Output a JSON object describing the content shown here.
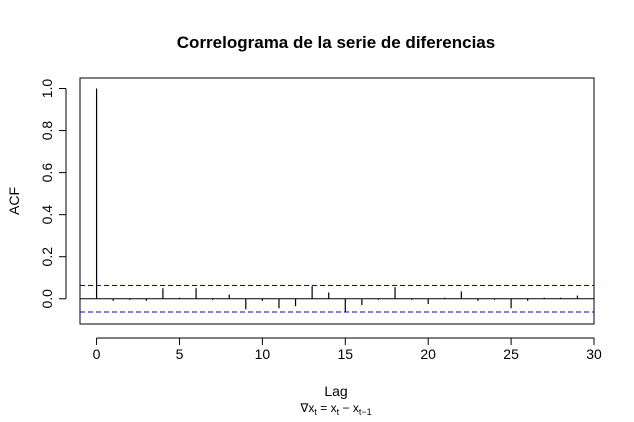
{
  "chart_data": {
    "type": "bar",
    "title": "Correlograma de la serie de diferencias",
    "xlabel": "Lag",
    "ylabel": "ACF",
    "caption": {
      "nabla": "∇",
      "x": "x",
      "t": "t",
      "equals": " = ",
      "minus": " − ",
      "t_minus_1": "t−1"
    },
    "xlim": [
      -1,
      30
    ],
    "ylim": [
      -0.12,
      1.05
    ],
    "x_ticks": [
      0,
      5,
      10,
      15,
      20,
      25,
      30
    ],
    "x_tick_labels": [
      "0",
      "5",
      "10",
      "15",
      "20",
      "25",
      "30"
    ],
    "y_ticks": [
      0.0,
      0.2,
      0.4,
      0.6,
      0.8,
      1.0
    ],
    "y_tick_labels": [
      "0.0",
      "0.2",
      "0.4",
      "0.6",
      "0.8",
      "1.0"
    ],
    "lags": [
      0,
      1,
      2,
      3,
      4,
      5,
      6,
      7,
      8,
      9,
      10,
      11,
      12,
      13,
      14,
      15,
      16,
      17,
      18,
      19,
      20,
      21,
      22,
      23,
      24,
      25,
      26,
      27,
      28,
      29
    ],
    "values": [
      1.0,
      -0.01,
      -0.005,
      -0.01,
      0.05,
      0.005,
      0.05,
      -0.005,
      0.02,
      -0.05,
      -0.01,
      -0.045,
      -0.035,
      0.06,
      0.03,
      -0.065,
      -0.03,
      -0.005,
      0.055,
      -0.005,
      -0.025,
      0.005,
      0.035,
      -0.01,
      -0.005,
      -0.045,
      -0.01,
      0.005,
      0.005,
      0.015
    ],
    "confidence_bound": 0.063,
    "grid": false,
    "colors": {
      "bars": "#000000",
      "confidence_lines": "#0000cc",
      "frame": "#000000"
    }
  }
}
